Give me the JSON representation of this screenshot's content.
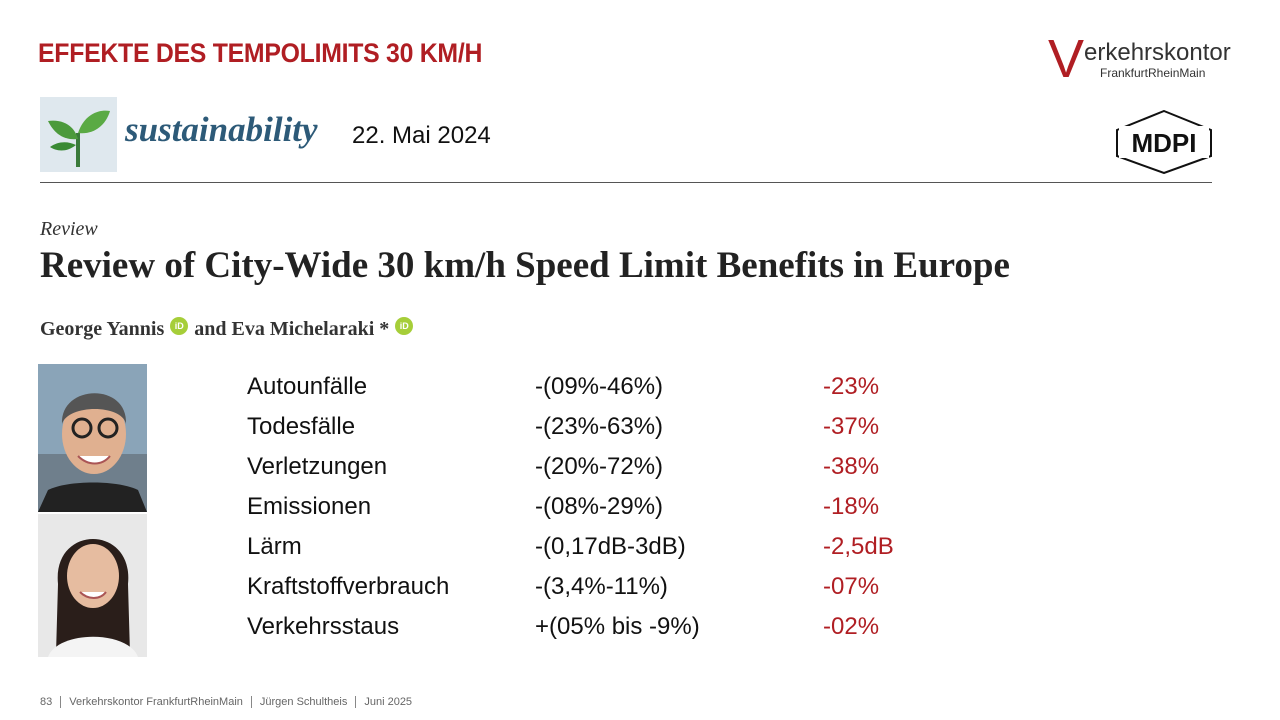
{
  "header": {
    "title": "EFFEKTE DES TEMPOLIMITS 30 KM/H"
  },
  "logo": {
    "initial": "V",
    "rest": "erkehrskontor",
    "sub": "FrankfurtRheinMain"
  },
  "journal": {
    "name": "sustainability",
    "date": "22. Mai 2024",
    "publisher": "MDPI"
  },
  "paper": {
    "label": "Review",
    "title": "Review of City-Wide 30 km/h Speed Limit Benefits in Europe",
    "authors": [
      "George Yannis",
      "and Eva Michelaraki *"
    ],
    "orcid": "iD"
  },
  "table": {
    "rows": [
      [
        "Autounfälle",
        "-(09%-46%)",
        "-23%"
      ],
      [
        "Todesfälle",
        "-(23%-63%)",
        "-37%"
      ],
      [
        "Verletzungen",
        "-(20%-72%)",
        "-38%"
      ],
      [
        "Emissionen",
        "-(08%-29%)",
        "-18%"
      ],
      [
        "Lärm",
        "-(0,17dB-3dB)",
        "-2,5dB"
      ],
      [
        "Kraftstoffverbrauch",
        "-(3,4%-11%)",
        "-07%"
      ],
      [
        "Verkehrsstaus",
        "+(05% bis -9%)",
        "-02%"
      ]
    ]
  },
  "footer": {
    "items": [
      "83",
      "Verkehrskontor FrankfurtRheinMain",
      "Jürgen Schultheis",
      "Juni 2025"
    ]
  }
}
